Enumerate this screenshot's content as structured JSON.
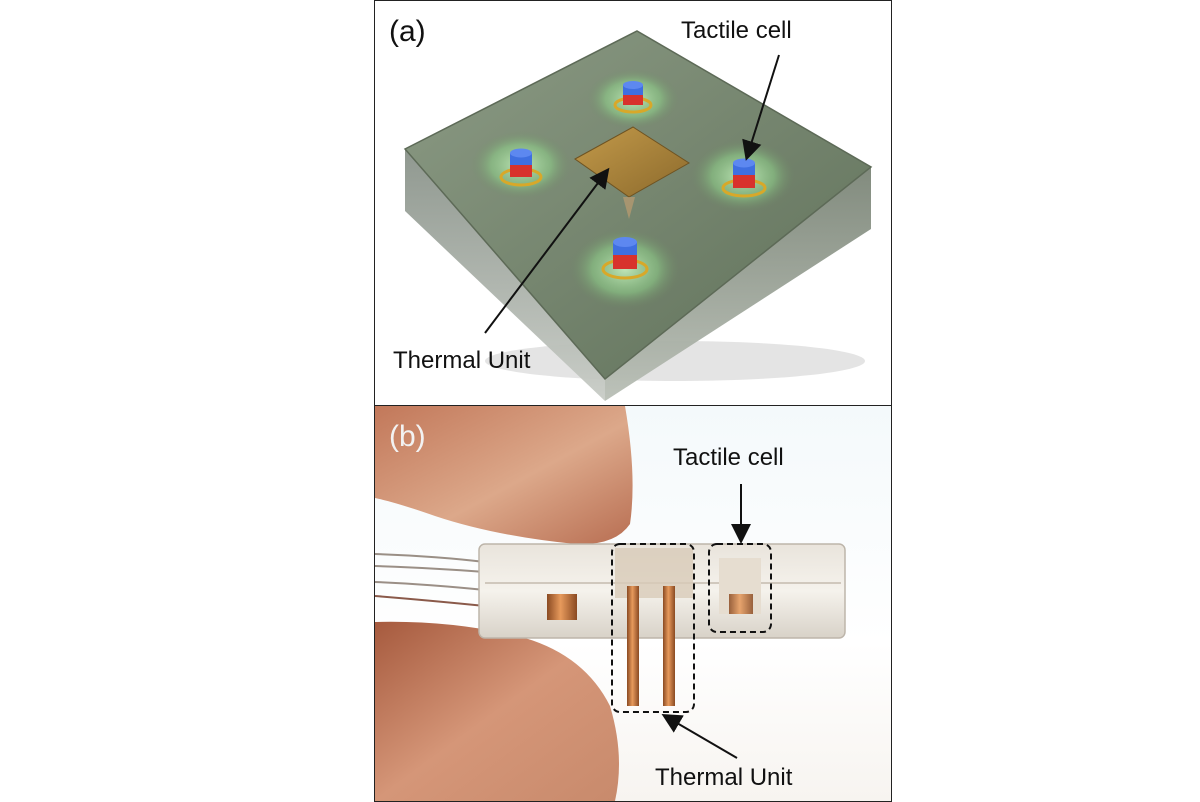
{
  "panels": [
    {
      "id": "a",
      "tag": "(a)",
      "annotations": {
        "tactile": "Tactile cell",
        "thermal": "Thermal Unit"
      }
    },
    {
      "id": "b",
      "tag": "(b)",
      "annotations": {
        "tactile": "Tactile cell",
        "thermal": "Thermal Unit"
      }
    }
  ],
  "colors": {
    "sensor_block": "#6f7d68",
    "sensor_top_green": "#7fae7a",
    "magnet_blue": "#3f6fe0",
    "magnet_red": "#d8322c",
    "coil_gold": "#d8a829",
    "thermal_pad": "#a8823a",
    "copper": "#c9743a",
    "skin": "#d99a78"
  }
}
